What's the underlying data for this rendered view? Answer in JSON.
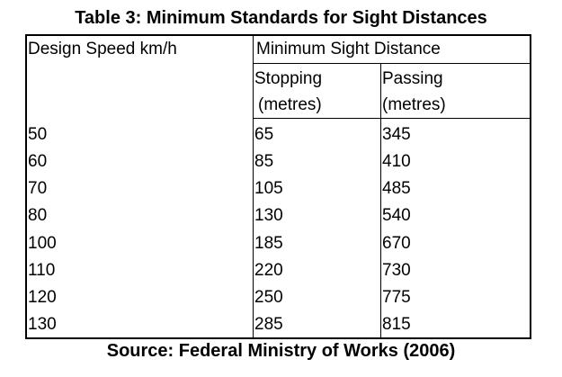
{
  "title": "Table 3: Minimum Standards for Sight Distances",
  "source": "Source: Federal Ministry of Works (2006)",
  "headers": {
    "design_speed": "Design Speed km/h",
    "min_sight_distance": "Minimum Sight Distance",
    "stopping_line1": "Stopping",
    "stopping_line2": "(metres)",
    "passing_line1": "Passing",
    "passing_line2": "(metres)"
  },
  "rows": [
    {
      "speed": "50",
      "stopping": "65",
      "passing": "345"
    },
    {
      "speed": "60",
      "stopping": "85",
      "passing": "410"
    },
    {
      "speed": "70",
      "stopping": "105",
      "passing": "485"
    },
    {
      "speed": "80",
      "stopping": "130",
      "passing": "540"
    },
    {
      "speed": "100",
      "stopping": "185",
      "passing": "670"
    },
    {
      "speed": "110",
      "stopping": "220",
      "passing": "730"
    },
    {
      "speed": "120",
      "stopping": "250",
      "passing": "775"
    },
    {
      "speed": "130",
      "stopping": "285",
      "passing": "815"
    }
  ]
}
